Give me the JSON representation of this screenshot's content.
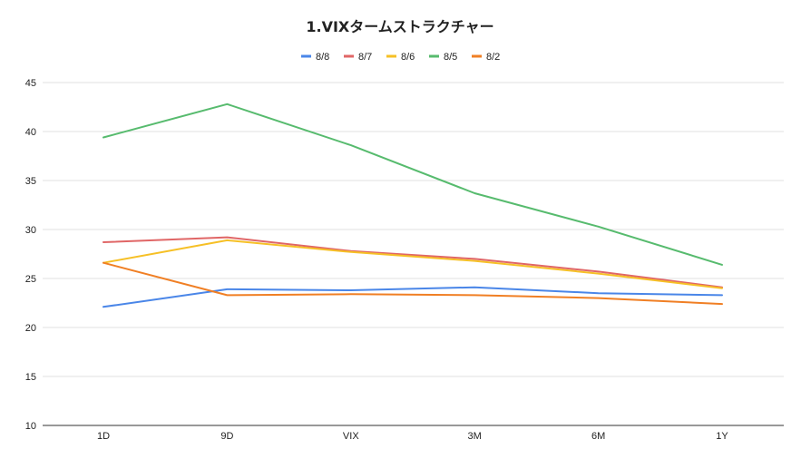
{
  "chart_data": {
    "type": "line",
    "title": "1.VIXタームストラクチャー",
    "xlabel": "",
    "ylabel": "",
    "categories": [
      "1D",
      "9D",
      "VIX",
      "3M",
      "6M",
      "1Y"
    ],
    "ylim": [
      10,
      45
    ],
    "yticks": [
      10,
      15,
      20,
      25,
      30,
      35,
      40,
      45
    ],
    "grid": true,
    "legend_position": "top",
    "series": [
      {
        "name": "8/8",
        "color": "#4a86e8",
        "values": [
          22.1,
          23.9,
          23.8,
          24.1,
          23.5,
          23.3
        ]
      },
      {
        "name": "8/7",
        "color": "#e06666",
        "values": [
          28.7,
          29.2,
          27.8,
          27.0,
          25.7,
          24.1
        ]
      },
      {
        "name": "8/6",
        "color": "#f6c026",
        "values": [
          26.6,
          28.9,
          27.7,
          26.8,
          25.5,
          24.0
        ]
      },
      {
        "name": "8/5",
        "color": "#57bb6e",
        "values": [
          39.4,
          42.8,
          38.6,
          33.7,
          30.3,
          26.4
        ]
      },
      {
        "name": "8/2",
        "color": "#f07f24",
        "values": [
          26.6,
          23.3,
          23.4,
          23.3,
          23.0,
          22.4
        ]
      }
    ]
  }
}
